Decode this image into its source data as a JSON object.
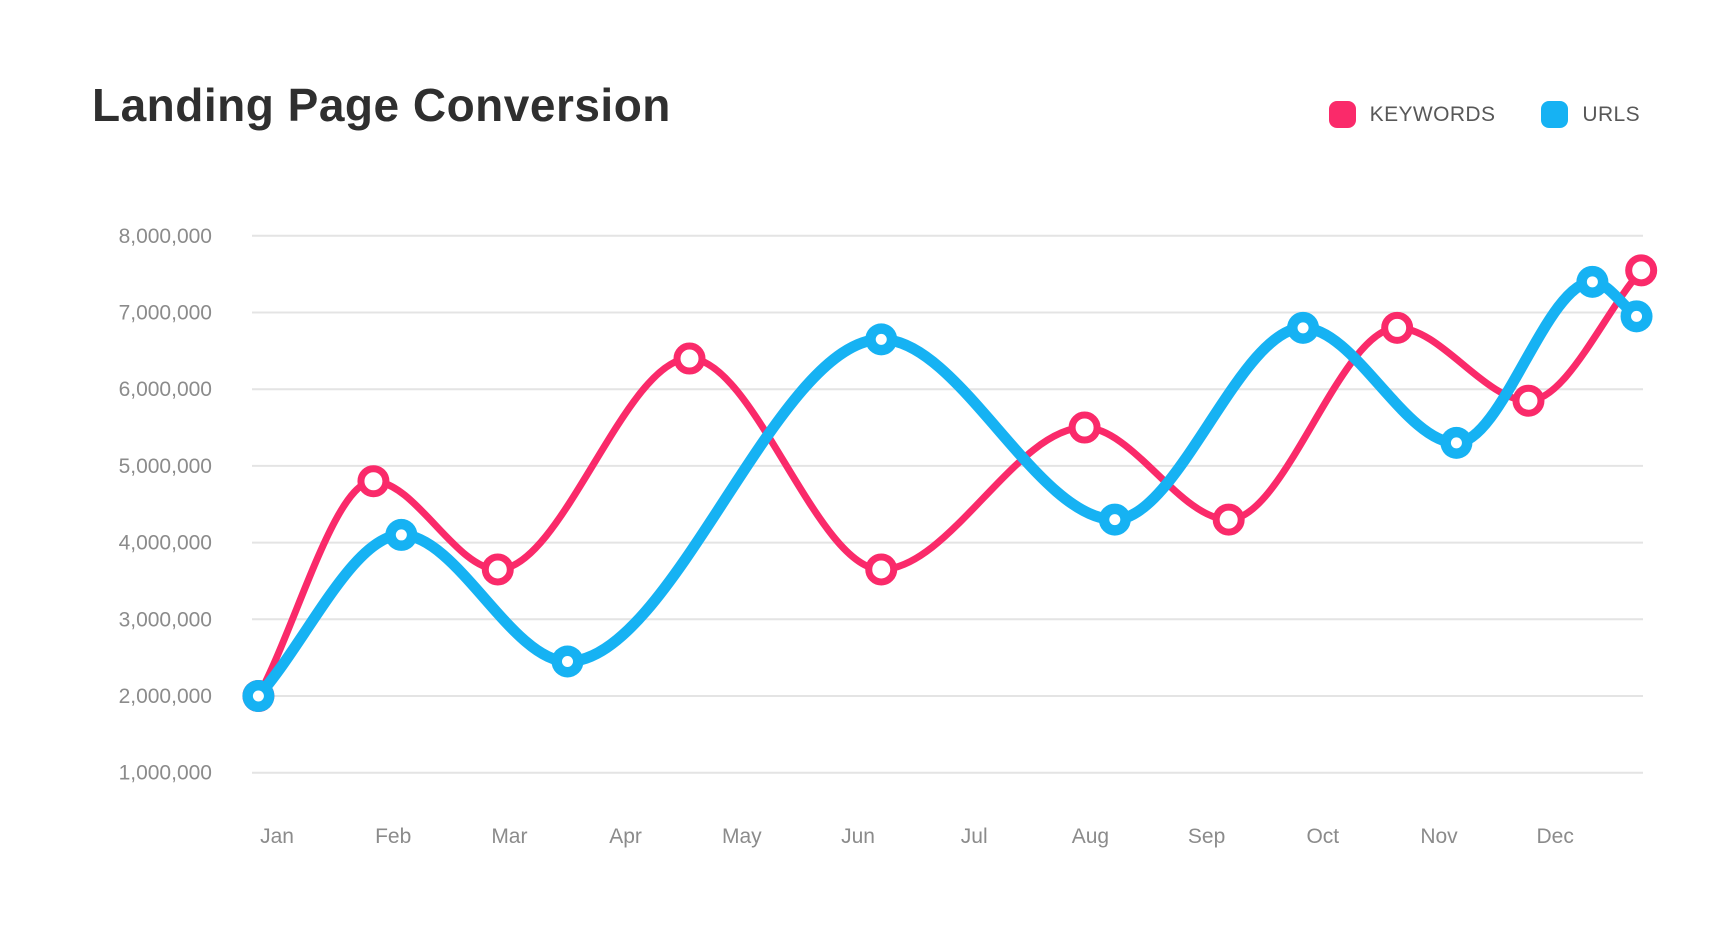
{
  "title": "Landing Page Conversion",
  "legend": {
    "items": [
      {
        "label": "KEYWORDS",
        "color": "#fa2a6a"
      },
      {
        "label": "URLS",
        "color": "#16b2f3"
      }
    ]
  },
  "colors": {
    "background": "#ffffff",
    "gridline": "#e4e4e4",
    "axis_text": "#8b8b8b",
    "title_text": "#2f2f2f",
    "legend_text": "#585858"
  },
  "chart_data": {
    "type": "line",
    "title": "Landing Page Conversion",
    "categories": [
      "Jan",
      "Feb",
      "Mar",
      "Apr",
      "May",
      "Jun",
      "Jul",
      "Aug",
      "Sep",
      "Oct",
      "Nov",
      "Dec"
    ],
    "xlabel": "",
    "ylabel": "",
    "ylim": [
      1000000,
      8000000
    ],
    "y_ticks": [
      1000000,
      2000000,
      3000000,
      4000000,
      5000000,
      6000000,
      7000000,
      8000000
    ],
    "y_tick_labels": [
      "1,000,000",
      "2,000,000",
      "3,000,000",
      "4,000,000",
      "5,000,000",
      "6,000,000",
      "7,000,000",
      "8,000,000"
    ],
    "grid": "horizontal",
    "legend_position": "top-right",
    "curve": "smooth",
    "x_note": "x is a fractional month index: 0 = Jan ... 11 = Dec; points slightly off-tick reproduce the stylized source graphic",
    "series": [
      {
        "name": "KEYWORDS",
        "color": "#fa2a6a",
        "marker": "ring",
        "line_width": 7,
        "points": [
          {
            "x": -0.16,
            "value": 2000000
          },
          {
            "x": 0.83,
            "value": 4800000
          },
          {
            "x": 1.9,
            "value": 3650000
          },
          {
            "x": 3.55,
            "value": 6400000
          },
          {
            "x": 5.2,
            "value": 3650000
          },
          {
            "x": 6.95,
            "value": 5500000
          },
          {
            "x": 8.19,
            "value": 4300000
          },
          {
            "x": 9.64,
            "value": 6800000
          },
          {
            "x": 10.77,
            "value": 5850000
          },
          {
            "x": 11.74,
            "value": 7550000
          }
        ]
      },
      {
        "name": "URLS",
        "color": "#16b2f3",
        "marker": "donut",
        "line_width": 11,
        "points": [
          {
            "x": -0.16,
            "value": 2000000
          },
          {
            "x": 1.07,
            "value": 4100000
          },
          {
            "x": 2.5,
            "value": 2450000
          },
          {
            "x": 5.2,
            "value": 6650000
          },
          {
            "x": 7.21,
            "value": 4300000
          },
          {
            "x": 8.83,
            "value": 6800000
          },
          {
            "x": 10.15,
            "value": 5300000
          },
          {
            "x": 11.32,
            "value": 7400000
          },
          {
            "x": 11.7,
            "value": 6950000
          }
        ]
      }
    ]
  }
}
